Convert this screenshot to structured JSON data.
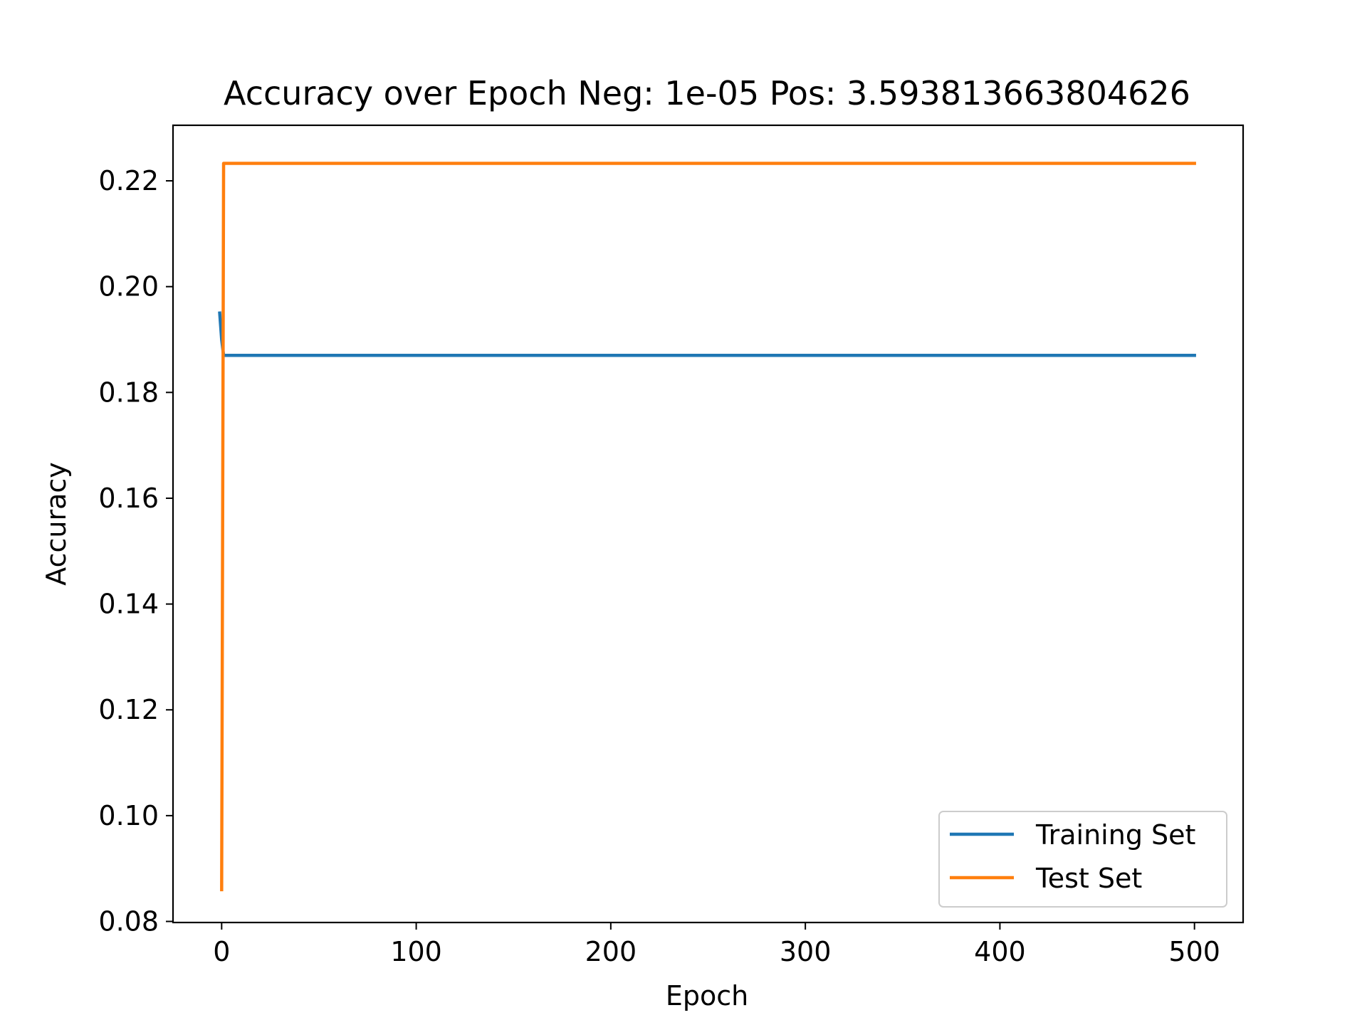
{
  "chart_data": {
    "type": "line",
    "title": "Accuracy over Epoch Neg: 1e-05 Pos: 3.593813663804626",
    "xlabel": "Epoch",
    "ylabel": "Accuracy",
    "xlim": [
      -25,
      525
    ],
    "ylim": [
      0.0798,
      0.2305
    ],
    "xticks": [
      0,
      100,
      200,
      300,
      400,
      500
    ],
    "xtick_labels": [
      "0",
      "100",
      "200",
      "300",
      "400",
      "500"
    ],
    "yticks": [
      0.08,
      0.1,
      0.12,
      0.14,
      0.16,
      0.18,
      0.2,
      0.22
    ],
    "ytick_labels": [
      "0.08",
      "0.10",
      "0.12",
      "0.14",
      "0.16",
      "0.18",
      "0.20",
      "0.22"
    ],
    "grid": false,
    "legend_position": "lower-right",
    "series": [
      {
        "name": "Training Set",
        "color": "#1f77b4",
        "x": [
          -1,
          0,
          1,
          2,
          500
        ],
        "y": [
          0.195,
          0.19,
          0.187,
          0.187,
          0.187
        ]
      },
      {
        "name": "Test Set",
        "color": "#ff7f0e",
        "x": [
          0,
          1,
          2,
          500
        ],
        "y": [
          0.086,
          0.2233,
          0.2233,
          0.2233
        ]
      }
    ]
  }
}
